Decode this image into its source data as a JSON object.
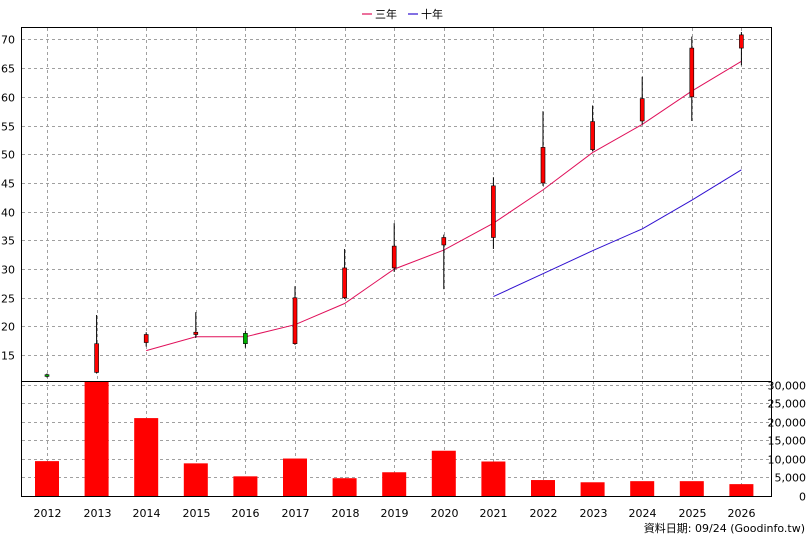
{
  "chart_data": {
    "type": "candlestick+line+bar",
    "years": [
      "2012",
      "2013",
      "2014",
      "2015",
      "2016",
      "2017",
      "2018",
      "2019",
      "2020",
      "2021",
      "2022",
      "2023",
      "2024",
      "2025",
      "2026"
    ],
    "price_axis": {
      "ticks": [
        15,
        20,
        25,
        30,
        35,
        40,
        45,
        50,
        55,
        60,
        65,
        70
      ],
      "ylim": [
        10.5,
        72
      ]
    },
    "volume_axis": {
      "ticks": [
        0,
        5000,
        10000,
        15000,
        20000,
        25000,
        30000
      ],
      "tick_labels": [
        "0",
        "5,000",
        "10,000",
        "15,000",
        "20,000",
        "25,000",
        "30,000"
      ],
      "ylim": [
        0,
        31000
      ]
    },
    "legend": [
      {
        "name": "三年",
        "color": "#e0105a"
      },
      {
        "name": "十年",
        "color": "#3010d0"
      }
    ],
    "candles": [
      {
        "year": "2012",
        "open": 11.6,
        "close": 11.3,
        "high": 11.8,
        "low": 11.1
      },
      {
        "year": "2013",
        "open": 12.0,
        "close": 17.0,
        "high": 22.0,
        "low": 11.8
      },
      {
        "year": "2014",
        "open": 17.2,
        "close": 18.6,
        "high": 19.0,
        "low": 16.5
      },
      {
        "year": "2015",
        "open": 18.6,
        "close": 19.0,
        "high": 22.5,
        "low": 18.0
      },
      {
        "year": "2016",
        "open": 18.8,
        "close": 17.0,
        "high": 19.2,
        "low": 16.3
      },
      {
        "year": "2017",
        "open": 17.0,
        "close": 25.0,
        "high": 27.0,
        "low": 16.8
      },
      {
        "year": "2018",
        "open": 25.0,
        "close": 30.2,
        "high": 33.5,
        "low": 24.8
      },
      {
        "year": "2019",
        "open": 30.2,
        "close": 34.0,
        "high": 38.0,
        "low": 29.5
      },
      {
        "year": "2020",
        "open": 34.2,
        "close": 35.5,
        "high": 36.0,
        "low": 26.5
      },
      {
        "year": "2021",
        "open": 35.5,
        "close": 44.5,
        "high": 46.0,
        "low": 33.5
      },
      {
        "year": "2022",
        "open": 45.0,
        "close": 51.2,
        "high": 57.5,
        "low": 44.5
      },
      {
        "year": "2023",
        "open": 50.8,
        "close": 55.7,
        "high": 58.5,
        "low": 50.5
      },
      {
        "year": "2024",
        "open": 55.8,
        "close": 59.7,
        "high": 63.5,
        "low": 55.2
      },
      {
        "year": "2025",
        "open": 60.0,
        "close": 68.5,
        "high": 70.5,
        "low": 55.8
      },
      {
        "year": "2026",
        "open": 68.5,
        "close": 70.8,
        "high": 71.3,
        "low": 65.5
      }
    ],
    "series": [
      {
        "name": "三年",
        "x": [
          "2014",
          "2015",
          "2016",
          "2017",
          "2018",
          "2019",
          "2020",
          "2021",
          "2022",
          "2023",
          "2024",
          "2025",
          "2026"
        ],
        "values": [
          15.8,
          18.2,
          18.2,
          20.3,
          24.0,
          30.0,
          33.3,
          38.0,
          43.8,
          50.3,
          55.2,
          61.0,
          66.2
        ]
      },
      {
        "name": "十年",
        "x": [
          "2021",
          "2022",
          "2023",
          "2024",
          "2025",
          "2026"
        ],
        "values": [
          25.2,
          29.2,
          33.2,
          37.0,
          42.0,
          47.3
        ]
      }
    ],
    "volume": [
      9400,
      31000,
      21000,
      8800,
      5300,
      10100,
      4800,
      6400,
      12200,
      9300,
      4300,
      3700,
      4000,
      4000,
      3200
    ],
    "volume_color": "#ff0000",
    "up_color": "#ff0000",
    "down_color": "#00b000"
  },
  "footer": {
    "source": "資料日期: 09/24  (Goodinfo.tw)"
  }
}
